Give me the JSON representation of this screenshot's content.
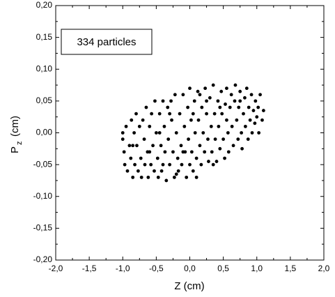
{
  "chart_data": {
    "type": "scatter",
    "annotation": "334 particles",
    "xlabel": "Z (cm)",
    "ylabel": {
      "main": "P",
      "sub": "z",
      "unit": "(cm)"
    },
    "color": "#000000",
    "xlim": [
      -2.0,
      2.0
    ],
    "ylim": [
      -0.2,
      0.2
    ],
    "xticks": [
      {
        "value": -2.0,
        "label": "-2,0"
      },
      {
        "value": -1.5,
        "label": "-1,5"
      },
      {
        "value": -1.0,
        "label": "-1,0"
      },
      {
        "value": -0.5,
        "label": "-0,5"
      },
      {
        "value": 0.0,
        "label": "0,0"
      },
      {
        "value": 0.5,
        "label": "0,5"
      },
      {
        "value": 1.0,
        "label": "1,0"
      },
      {
        "value": 1.5,
        "label": "1,5"
      },
      {
        "value": 2.0,
        "label": "2,0"
      }
    ],
    "yticks": [
      {
        "value": -0.2,
        "label": "-0,20"
      },
      {
        "value": -0.15,
        "label": "-0,15"
      },
      {
        "value": -0.1,
        "label": "-0,10"
      },
      {
        "value": -0.05,
        "label": "-0,05"
      },
      {
        "value": 0.0,
        "label": "0,00"
      },
      {
        "value": 0.05,
        "label": "0,05"
      },
      {
        "value": 0.1,
        "label": "0,10"
      },
      {
        "value": 0.15,
        "label": "0,15"
      },
      {
        "value": 0.2,
        "label": "0,20"
      }
    ],
    "x": [
      -1.0,
      -1.0,
      -0.98,
      -0.97,
      -0.95,
      -0.93,
      -0.9,
      -0.88,
      -0.87,
      -0.85,
      -0.83,
      -0.82,
      -0.8,
      -0.79,
      -0.77,
      -0.75,
      -0.73,
      -0.72,
      -0.7,
      -0.68,
      -0.67,
      -0.65,
      -0.63,
      -0.62,
      -0.6,
      -0.58,
      -0.57,
      -0.55,
      -0.53,
      -0.52,
      -0.5,
      -0.48,
      -0.47,
      -0.45,
      -0.43,
      -0.42,
      -0.4,
      -0.38,
      -0.37,
      -0.35,
      -0.33,
      -0.32,
      -0.3,
      -0.28,
      -0.27,
      -0.25,
      -0.23,
      -0.22,
      -0.2,
      -0.18,
      -0.17,
      -0.15,
      -0.13,
      -0.12,
      -0.1,
      -0.08,
      -0.07,
      -0.05,
      -0.03,
      -0.02,
      0.0,
      0.0,
      0.02,
      0.03,
      0.05,
      0.07,
      0.08,
      0.1,
      0.12,
      0.13,
      0.15,
      0.17,
      0.18,
      0.2,
      0.22,
      0.23,
      0.25,
      0.27,
      0.28,
      0.3,
      0.32,
      0.33,
      0.35,
      0.37,
      0.38,
      0.4,
      0.42,
      0.43,
      0.45,
      0.47,
      0.48,
      0.5,
      0.52,
      0.53,
      0.55,
      0.57,
      0.58,
      0.6,
      0.62,
      0.63,
      0.65,
      0.67,
      0.68,
      0.7,
      0.72,
      0.73,
      0.75,
      0.77,
      0.78,
      0.8,
      0.82,
      0.83,
      0.85,
      0.87,
      0.88,
      0.9,
      0.92,
      0.93,
      0.95,
      0.97,
      0.98,
      1.0,
      1.02,
      1.03,
      1.05,
      1.08,
      1.1,
      -0.6,
      -0.4,
      -0.2,
      0.1,
      -0.1,
      0.35,
      0.55,
      0.25,
      -0.45,
      -0.85,
      0.75,
      0.15,
      -0.3,
      0.45,
      0.05
    ],
    "values": [
      -0.01,
      0.0,
      -0.03,
      -0.05,
      0.01,
      -0.06,
      -0.02,
      -0.04,
      0.02,
      -0.07,
      0.0,
      -0.05,
      0.03,
      -0.02,
      -0.06,
      0.01,
      -0.04,
      -0.07,
      0.02,
      -0.01,
      -0.05,
      0.04,
      -0.03,
      -0.07,
      0.01,
      -0.05,
      0.03,
      -0.02,
      -0.06,
      0.05,
      0.0,
      -0.04,
      -0.07,
      0.03,
      -0.02,
      -0.06,
      0.05,
      0.01,
      -0.03,
      -0.075,
      0.04,
      -0.01,
      -0.05,
      0.05,
      0.02,
      -0.03,
      -0.07,
      0.06,
      0.0,
      -0.04,
      -0.06,
      0.03,
      -0.02,
      -0.05,
      0.06,
      0.01,
      -0.03,
      -0.07,
      0.04,
      -0.01,
      -0.05,
      0.07,
      0.02,
      -0.03,
      -0.06,
      0.05,
      0.0,
      -0.04,
      0.065,
      0.02,
      -0.02,
      -0.05,
      0.04,
      0.0,
      -0.03,
      0.07,
      0.03,
      -0.01,
      -0.045,
      0.055,
      0.01,
      -0.03,
      0.075,
      0.03,
      -0.01,
      -0.045,
      0.05,
      0.01,
      -0.025,
      0.065,
      0.03,
      -0.01,
      -0.04,
      0.045,
      0.07,
      0.0,
      -0.03,
      0.04,
      0.06,
      0.01,
      -0.02,
      0.05,
      0.075,
      0.02,
      -0.01,
      0.04,
      0.065,
      0.0,
      -0.025,
      0.03,
      0.055,
      0.01,
      0.07,
      -0.01,
      0.04,
      0.02,
      0.06,
      0.0,
      0.035,
      0.015,
      0.05,
      0.025,
      0.04,
      0.0,
      0.06,
      0.02,
      0.035,
      -0.03,
      -0.05,
      -0.065,
      -0.07,
      -0.03,
      -0.05,
      0.02,
      0.05,
      0.0,
      -0.02,
      0.05,
      0.06,
      0.03,
      0.04,
      0.03
    ]
  }
}
